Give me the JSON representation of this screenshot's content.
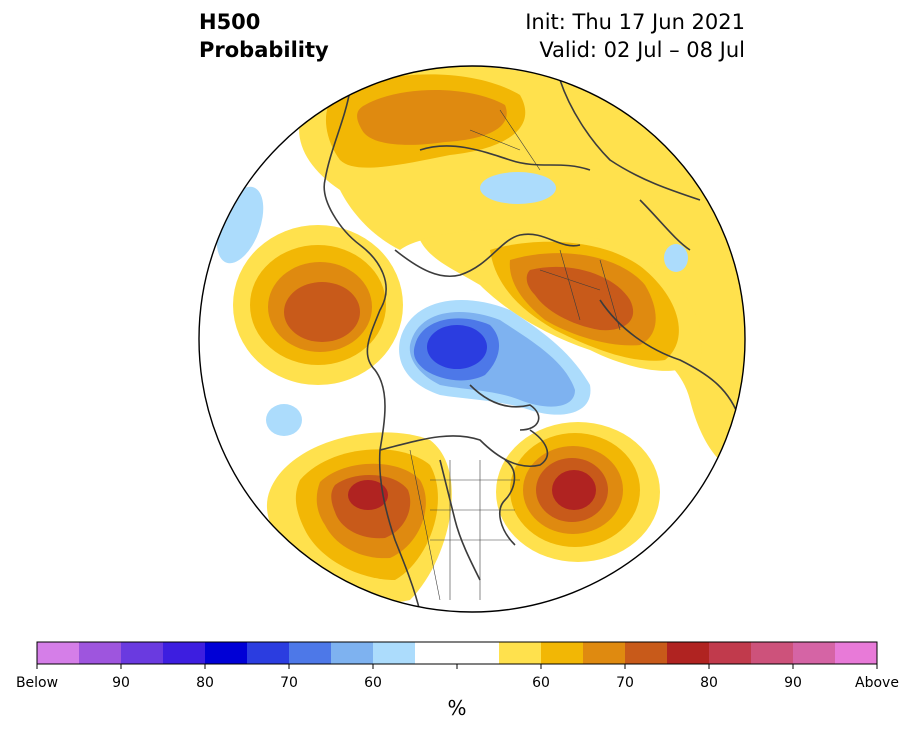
{
  "header": {
    "variable": "H500",
    "product": "Probability",
    "init": "Init: Thu 17 Jun 2021",
    "valid": "Valid: 02 Jul – 08 Jul"
  },
  "colorbar": {
    "unit": "%",
    "colors": [
      "#d57ee8",
      "#9e55de",
      "#6a3ae0",
      "#3d1ee0",
      "#0000d6",
      "#2b3de0",
      "#4d78e8",
      "#7eb2f0",
      "#acdcfc",
      "#ffffff",
      "#ffffff",
      "#ffe14d",
      "#f2b705",
      "#df8a10",
      "#c85a1a",
      "#b02321",
      "#c13a4c",
      "#cd527b",
      "#d564a5",
      "#e87ad8"
    ],
    "tick_labels": [
      "Below",
      "90",
      "80",
      "70",
      "60",
      "",
      "60",
      "70",
      "80",
      "90",
      "Above"
    ]
  },
  "map": {
    "projection": "north-polar-stereographic",
    "category": "500 hPa height anomaly probability",
    "features": [
      {
        "name": "Above-normal center NE Pacific / Gulf of Alaska region",
        "level": "70"
      },
      {
        "name": "Above-normal center western North America",
        "level": "80"
      },
      {
        "name": "Above-normal center eastern Canada / NW Atlantic",
        "level": "80"
      },
      {
        "name": "Above-normal center Eurasia",
        "level": "70"
      },
      {
        "name": "Above-normal region Europe / North Atlantic",
        "level": "60"
      },
      {
        "name": "Below-normal center Arctic Ocean",
        "level": "80"
      },
      {
        "name": "Below-normal patch Barents Sea",
        "level": "60"
      }
    ]
  }
}
